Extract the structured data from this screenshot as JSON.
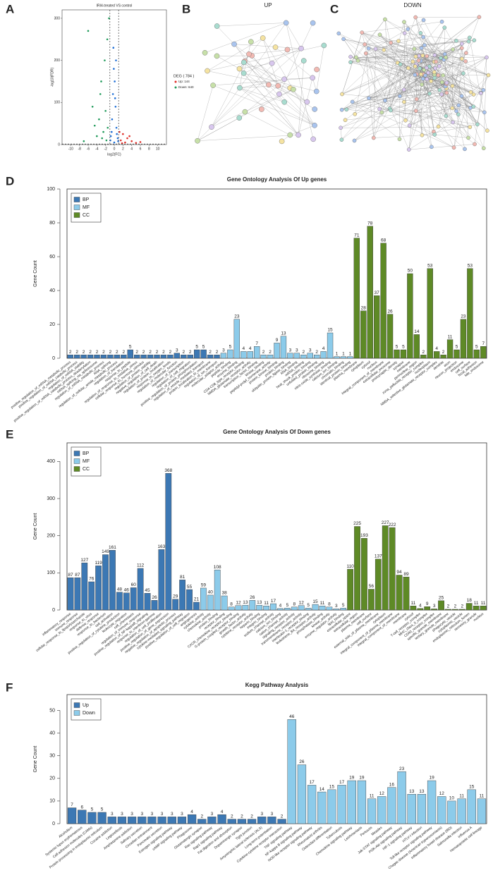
{
  "panel_labels": [
    "A",
    "B",
    "C",
    "D",
    "E",
    "F"
  ],
  "networks": [
    {
      "title": "UP"
    },
    {
      "title": "DOWN"
    }
  ],
  "chart_data": [
    {
      "type": "scatter",
      "title": "IRI4-treated VS control",
      "xlabel": "log2(FC)",
      "ylabel": "-log10(FDR)",
      "legend_title": "DEG ( 784 )",
      "xlim": [
        -12,
        12
      ],
      "xticks": [
        -10,
        -8,
        -6,
        -4,
        -2,
        0,
        2,
        4,
        6,
        8,
        10
      ],
      "ylim": [
        0,
        320
      ],
      "yticks": [
        0,
        100,
        200,
        300
      ],
      "vlines": [
        -1,
        1
      ],
      "hline": 1.3,
      "series": [
        {
          "color": "#1f6fd6",
          "x": [
            -0.8,
            -0.5,
            -0.3,
            -0.1,
            0.1,
            0.3,
            0.5,
            0.8,
            -0.6,
            0.4,
            -0.2,
            0.2,
            0.6,
            -0.9,
            0.9,
            0.0
          ],
          "y": [
            20,
            60,
            120,
            180,
            150,
            90,
            40,
            15,
            30,
            200,
            230,
            110,
            25,
            10,
            8,
            5
          ]
        },
        {
          "name": "Up: 144",
          "color": "#e0302a",
          "x": [
            1.5,
            2,
            2.5,
            3,
            4,
            5,
            1.2,
            1.8,
            3.5,
            6
          ],
          "y": [
            10,
            25,
            5,
            15,
            8,
            4,
            30,
            3,
            20,
            6
          ]
        },
        {
          "name": "Down: 640",
          "color": "#1f9a5a",
          "x": [
            -1.5,
            -2,
            -2.5,
            -3,
            -3.5,
            -4,
            -5,
            -6,
            -2.2,
            -1.8,
            -3.2,
            -4.5,
            -1.2,
            -2.8,
            -7,
            -1.6
          ],
          "y": [
            40,
            80,
            30,
            150,
            60,
            20,
            90,
            270,
            200,
            10,
            120,
            45,
            300,
            15,
            8,
            250
          ]
        }
      ]
    },
    {
      "type": "bar",
      "title": "Gene Ontology Analysis Of Up genes",
      "ylabel": "Gene Count",
      "ylim": [
        0,
        100
      ],
      "yticks": [
        0,
        20,
        40,
        60,
        80,
        100
      ],
      "legend": "top-left",
      "categories": [
        "positive_regulation_of_mRNA_metabolic_process",
        "positive_regulation_of_mRNA_catabolic_process",
        "regulation_of_mRNA_stability",
        "positive_regulation_of_mRNA_catabolic_process_deadenylation",
        "mRNA_splicing_via_spliceosome",
        "regulation_of_mRNA_metabolic_process",
        "RNA_splicing",
        "regulation_of_cellular_amide_metabolic_process",
        "regulation_of_translation",
        "response_to_peptide",
        "regulation_of_response_to_oxidative_stress",
        "cellular_response_to_hormone_stimulus",
        "regulation_of_protein_stability",
        "negative_regulation_of_cell_death",
        "regulation_of_protein_localization",
        "response_to_oxygen_levels",
        "regulation_of_molecular_function",
        "regulation_of_transcription",
        "regulation_of_cell_migration",
        "positive_regulation_of_protein_phosphorylation",
        "regulation_of_vesicle_mediated_transport",
        "protein_localization_to_membrane",
        "regulation_of_ion_transport",
        "molecular_adaptor_activity",
        "peptide_binding",
        "enzyme_binding",
        "CD4-CD8_type_receptor_binding",
        "NMDA_glutamate_receptor_activity",
        "transcription_factor_binding",
        "kinase_binding",
        "peptidyl-prolyl_isomerase_activity",
        "protein_kinase_binding",
        "protein_binding",
        "ubiquitin_protein_ligase_binding",
        "RNA_binding",
        "mRNA_binding",
        "heat_shock_protein_binding",
        "unfolded_protein_binding",
        "ribosome_binding",
        "nitric-oxide_synthase_binding",
        "calcium_ion_binding",
        "chromatin_binding",
        "identical_protein_binding",
        "plasma_membrane",
        "cytoplasm",
        "cytosol",
        "nucleus",
        "integral_component_of_membrane",
        "extracellular_exosome",
        "postsynaptic_density",
        "synapse",
        "membrane",
        "perinuclear_region",
        "zona_pellucida_receptor_complex",
        "nucleoplasm",
        "NMDA_selective_glutamate_receptor_complex",
        "dendrite",
        "axon",
        "neuron_projection",
        "endosome",
        "cell_surface",
        "focal_adhesion",
        "late_endosome"
      ],
      "series": [
        {
          "name": "BP",
          "color": "#3c78b4",
          "values": [
            2,
            2,
            2,
            2,
            2,
            2,
            2,
            2,
            2,
            5,
            2,
            2,
            2,
            2,
            2,
            2,
            3,
            2,
            2,
            5,
            5,
            2,
            2,
            null,
            null,
            null,
            null,
            null,
            null,
            null,
            null,
            null,
            null,
            null,
            null,
            null,
            null,
            null,
            null,
            null,
            null,
            null,
            null,
            null,
            null,
            null,
            null,
            null,
            null,
            null,
            null,
            null,
            null,
            null,
            null,
            null,
            null,
            null,
            null,
            null,
            null,
            null,
            null
          ]
        },
        {
          "name": "MF",
          "color": "#8ccbea",
          "values": [
            null,
            null,
            null,
            null,
            null,
            null,
            null,
            null,
            null,
            null,
            null,
            null,
            null,
            null,
            null,
            null,
            null,
            null,
            null,
            null,
            null,
            null,
            null,
            3,
            5,
            23,
            4,
            4,
            7,
            2,
            2,
            9,
            13,
            3,
            3,
            2,
            3,
            2,
            4,
            15,
            1,
            1,
            1,
            null,
            null,
            null,
            null,
            null,
            null,
            null,
            null,
            null,
            null,
            null,
            null,
            null,
            null,
            null,
            null,
            null,
            null,
            null,
            null
          ]
        },
        {
          "name": "CC",
          "color": "#5e8a26",
          "values": [
            null,
            null,
            null,
            null,
            null,
            null,
            null,
            null,
            null,
            null,
            null,
            null,
            null,
            null,
            null,
            null,
            null,
            null,
            null,
            null,
            null,
            null,
            null,
            null,
            null,
            null,
            null,
            null,
            null,
            null,
            null,
            null,
            null,
            null,
            null,
            null,
            null,
            null,
            null,
            null,
            null,
            null,
            null,
            71,
            28,
            78,
            37,
            68,
            26,
            5,
            5,
            50,
            14,
            2,
            53,
            4,
            2,
            11,
            5,
            23,
            53,
            5,
            7
          ]
        }
      ]
    },
    {
      "type": "bar",
      "title": "Gene Ontology Analysis Of Down genes",
      "ylabel": "Gene Count",
      "ylim": [
        0,
        450
      ],
      "yticks": [
        0,
        100,
        200,
        300,
        400
      ],
      "legend": "top-left",
      "categories": [
        "inflammatory_response",
        "immune_response",
        "cellular_response_to_lipopolysaccharide",
        "response_to_virus",
        "defense_response",
        "response_to_bacterium",
        "cell_activation",
        "positive_regulation_of_cytokine_production",
        "leukocyte_migration",
        "cell_chemotaxis",
        "regulation_of_immune_response",
        "positive_regulation_of_NF-kappaB_signaling",
        "response_to_interferon-gamma",
        "regulation_of_cell_proliferation",
        "positive_regulation_of_gene_expression",
        "negative_regulation_of_apoptotic_process",
        "cytokine-mediated_signaling_pathway",
        "positive_regulation_of_cell_migration",
        "angiogenesis",
        "cytokine_activity",
        "chemokine_activity",
        "protein_binding",
        "receptor_binding",
        "CXCR_chemokine_receptor_binding",
        "G-protein_coupled_receptor_binding",
        "growth_factor_activity",
        "cytokine_receptor_activity",
        "heparin_binding",
        "integrin_binding",
        "sodium_channel_activity",
        "calcium_ion_binding",
        "cation_channel_activity",
        "signaling_receptor_activity",
        "transmembrane_receptor_activity",
        "interleukin-1_receptor_binding",
        "leukotriene_B4_receptor_activity",
        "phosphatase_binding",
        "kinase_activity",
        "enzyme_regulator_activity",
        "lipid_binding",
        "extracellular_space",
        "extracellular_region",
        "plasma_membrane",
        "cell_surface",
        "external_side_of_plasma_membrane",
        "cytoplasm",
        "integral_component_of_plasma_membrane",
        "integral_component_of_membrane",
        "membrane",
        "cytosol",
        "T-cell_receptor_complex",
        "MHC_class_II_complex",
        "CD40_receptor_complex",
        "specific_granule_membrane",
        "tertiary_granule_membrane",
        "phagocytic_vesicle",
        "cytoplasmic_vesicle",
        "endoplasmic_reticulum_lumen",
        "secretory_granule",
        "nucleus"
      ],
      "series": [
        {
          "name": "BP",
          "color": "#3c78b4",
          "values": [
            87,
            87,
            127,
            76,
            119,
            149,
            161,
            48,
            46,
            60,
            112,
            45,
            26,
            163,
            368,
            29,
            81,
            55,
            21,
            null,
            null,
            null,
            null,
            null,
            null,
            null,
            null,
            null,
            null,
            null,
            null,
            null,
            null,
            null,
            null,
            null,
            null,
            null,
            null,
            null,
            null,
            null,
            null,
            null,
            null,
            null,
            null,
            null,
            null,
            null,
            null,
            null,
            null,
            null,
            null,
            null,
            null,
            null,
            null,
            null
          ]
        },
        {
          "name": "MF",
          "color": "#8ccbea",
          "values": [
            null,
            null,
            null,
            null,
            null,
            null,
            null,
            null,
            null,
            null,
            null,
            null,
            null,
            null,
            null,
            null,
            null,
            null,
            null,
            59,
            40,
            108,
            38,
            8,
            12,
            13,
            26,
            13,
            11,
            17,
            4,
            5,
            8,
            12,
            5,
            15,
            11,
            8,
            3,
            5,
            null,
            null,
            null,
            null,
            null,
            null,
            null,
            null,
            null,
            null,
            null,
            null,
            null,
            null,
            null,
            null,
            null,
            null,
            null,
            null
          ]
        },
        {
          "name": "CC",
          "color": "#5e8a26",
          "values": [
            null,
            null,
            null,
            null,
            null,
            null,
            null,
            null,
            null,
            null,
            null,
            null,
            null,
            null,
            null,
            null,
            null,
            null,
            null,
            null,
            null,
            null,
            null,
            null,
            null,
            null,
            null,
            null,
            null,
            null,
            null,
            null,
            null,
            null,
            null,
            null,
            null,
            null,
            null,
            null,
            110,
            225,
            193,
            56,
            137,
            227,
            222,
            94,
            89,
            11,
            4,
            9,
            3,
            25,
            2,
            2,
            2,
            18,
            11,
            11
          ]
        }
      ]
    },
    {
      "type": "bar",
      "title": "Kegg Pathway Analysis",
      "ylabel": "Gene Count",
      "ylim": [
        0,
        57
      ],
      "yticks": [
        0,
        10,
        20,
        30,
        40,
        50
      ],
      "legend": "top-left",
      "categories": [
        "Alcoholism",
        "Systemic lupus erythematosus",
        "Cell adhesion molecules (CAMs)",
        "Protein processing in endoplasmic reticulum",
        "Cocaine addiction",
        "Legionellosis",
        "Amphetamine addiction",
        "Salivary secretion",
        "Circadian entrainment",
        "Pancreatic secretion",
        "Estrogen signaling pathway",
        "cAMP signaling pathway",
        "Phagosome",
        "Glutamatergic synapse",
        "Ras signaling pathway",
        "Rap1 signaling pathway",
        "Fat digestion and absorption",
        "Dopaminergic synapse",
        "Tight junction",
        "Amyotrophic lateral sclerosis (ALS)",
        "Long-term potentiation",
        "Cytokine-cytokine receptor interaction",
        "TNF signaling pathway",
        "NF-kappa B signaling pathway",
        "NOD-like receptor signaling pathway",
        "Rheumatoid arthritis",
        "Osteoclast differentiation",
        "Tuberculosis",
        "Chemokine signaling pathway",
        "Leishmaniasis",
        "Pertussis",
        "Measles",
        "Jak-STAT signaling pathway",
        "PI3K-Akt signaling pathway",
        "HIF-1 signaling pathway",
        "HTLV-I infection",
        "Toll-like receptor signaling pathway",
        "Chagas disease (American trypanosomiasis)",
        "Inflammatory bowel disease (IBD)",
        "Salmonella infection",
        "Influenza A",
        "Hematopoietic cell lineage"
      ],
      "series": [
        {
          "name": "Up",
          "color": "#3c78b4",
          "values": [
            7,
            6,
            5,
            5,
            3,
            3,
            3,
            3,
            3,
            3,
            3,
            3,
            4,
            2,
            3,
            4,
            2,
            2,
            2,
            3,
            3,
            2,
            null,
            null,
            null,
            null,
            null,
            null,
            null,
            null,
            null,
            null,
            null,
            null,
            null,
            null,
            null,
            null,
            null,
            null,
            null,
            null
          ]
        },
        {
          "name": "Down",
          "color": "#8ccbea",
          "values": [
            null,
            null,
            null,
            null,
            null,
            null,
            null,
            null,
            null,
            null,
            null,
            null,
            null,
            null,
            null,
            null,
            null,
            null,
            null,
            null,
            null,
            null,
            46,
            26,
            17,
            14,
            15,
            17,
            19,
            19,
            11,
            12,
            16,
            23,
            13,
            13,
            19,
            12,
            10,
            11,
            15,
            11
          ]
        }
      ]
    }
  ]
}
